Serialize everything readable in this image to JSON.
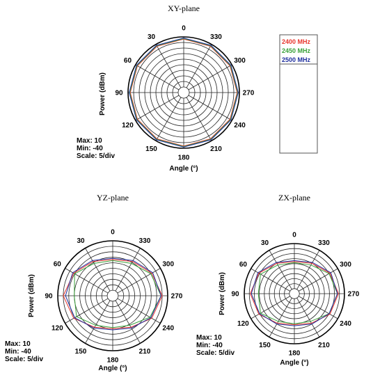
{
  "chart_data": [
    {
      "type": "polar",
      "title": "XY-plane",
      "xlabel": "Angle (°)",
      "ylabel": "Power (dBm)",
      "angle_ticks": [
        "0",
        "30",
        "60",
        "90",
        "120",
        "150",
        "180",
        "210",
        "240",
        "270",
        "300",
        "330"
      ],
      "angle_values": [
        0,
        30,
        60,
        90,
        120,
        150,
        180,
        210,
        240,
        270,
        300,
        330
      ],
      "rlim": [
        -40,
        10
      ],
      "rstep": 5,
      "info": [
        "Max: 10",
        "Min: -40",
        "Scale: 5/div"
      ],
      "series": [
        {
          "name": "2400 MHz",
          "color": "#e8372e",
          "values": [
            8,
            8,
            8,
            8,
            8,
            8,
            8,
            8,
            8,
            8,
            8,
            8
          ]
        },
        {
          "name": "2450 MHz",
          "color": "#3aa13a",
          "values": [
            8.5,
            8.5,
            8.5,
            8.5,
            8.5,
            8.5,
            8.5,
            8.5,
            8.5,
            8.5,
            8.5,
            8.5
          ]
        },
        {
          "name": "2500 MHz",
          "color": "#1f2f9e",
          "values": [
            9,
            9,
            9,
            9,
            9,
            9,
            9,
            9,
            9,
            9,
            9,
            9
          ]
        }
      ]
    },
    {
      "type": "polar",
      "title": "YZ-plane",
      "xlabel": "Angle (°)",
      "ylabel": "Power (dBm)",
      "angle_ticks": [
        "0",
        "30",
        "60",
        "90",
        "120",
        "150",
        "180",
        "210",
        "240",
        "270",
        "300",
        "330"
      ],
      "angle_values": [
        0,
        30,
        60,
        90,
        120,
        150,
        180,
        210,
        240,
        270,
        300,
        330
      ],
      "rlim": [
        -40,
        10
      ],
      "rstep": 5,
      "info": [
        "Max: 10",
        "Min: -40",
        "Scale: 5/div"
      ],
      "series": [
        {
          "name": "2400 MHz",
          "color": "#e8372e",
          "values": [
            -7,
            -4,
            1,
            5,
            1,
            -7,
            -10,
            -7,
            1,
            5,
            1,
            -4
          ]
        },
        {
          "name": "2450 MHz",
          "color": "#3aa13a",
          "values": [
            -8,
            -6,
            0,
            -5,
            -2,
            -9,
            -11,
            -9,
            -1,
            4,
            0,
            -6
          ]
        },
        {
          "name": "2500 MHz",
          "color": "#1f2f9e",
          "values": [
            -6,
            -3,
            2,
            3,
            0,
            -6,
            -9,
            -6,
            0,
            4,
            2,
            -3
          ]
        }
      ]
    },
    {
      "type": "polar",
      "title": "ZX-plane",
      "xlabel": "Angle (°)",
      "ylabel": "Power (dBm)",
      "angle_ticks": [
        "0",
        "30",
        "60",
        "90",
        "120",
        "150",
        "180",
        "210",
        "240",
        "270",
        "300",
        "330"
      ],
      "angle_values": [
        0,
        30,
        60,
        90,
        120,
        150,
        180,
        210,
        240,
        270,
        300,
        330
      ],
      "rlim": [
        -40,
        10
      ],
      "rstep": 5,
      "info": [
        "Max: 10",
        "Min: -40",
        "Scale: 5/div"
      ],
      "series": [
        {
          "name": "2400 MHz",
          "color": "#e8372e",
          "values": [
            -8,
            -5,
            1,
            4,
            1,
            -6,
            -9,
            -6,
            1,
            4,
            1,
            -5
          ]
        },
        {
          "name": "2450 MHz",
          "color": "#3aa13a",
          "values": [
            -9,
            -7,
            -1,
            -4,
            -1,
            -8,
            -10,
            -8,
            0,
            3,
            0,
            -7
          ]
        },
        {
          "name": "2500 MHz",
          "color": "#1f2f9e",
          "values": [
            -7,
            -4,
            2,
            3,
            0,
            -5,
            -8,
            -5,
            0,
            3,
            2,
            -4
          ]
        }
      ]
    }
  ],
  "legend": {
    "items": [
      {
        "label": "2400 MHz",
        "color": "#e8372e"
      },
      {
        "label": "2450 MHz",
        "color": "#3aa13a"
      },
      {
        "label": "2500 MHz",
        "color": "#1f2f9e"
      }
    ]
  }
}
